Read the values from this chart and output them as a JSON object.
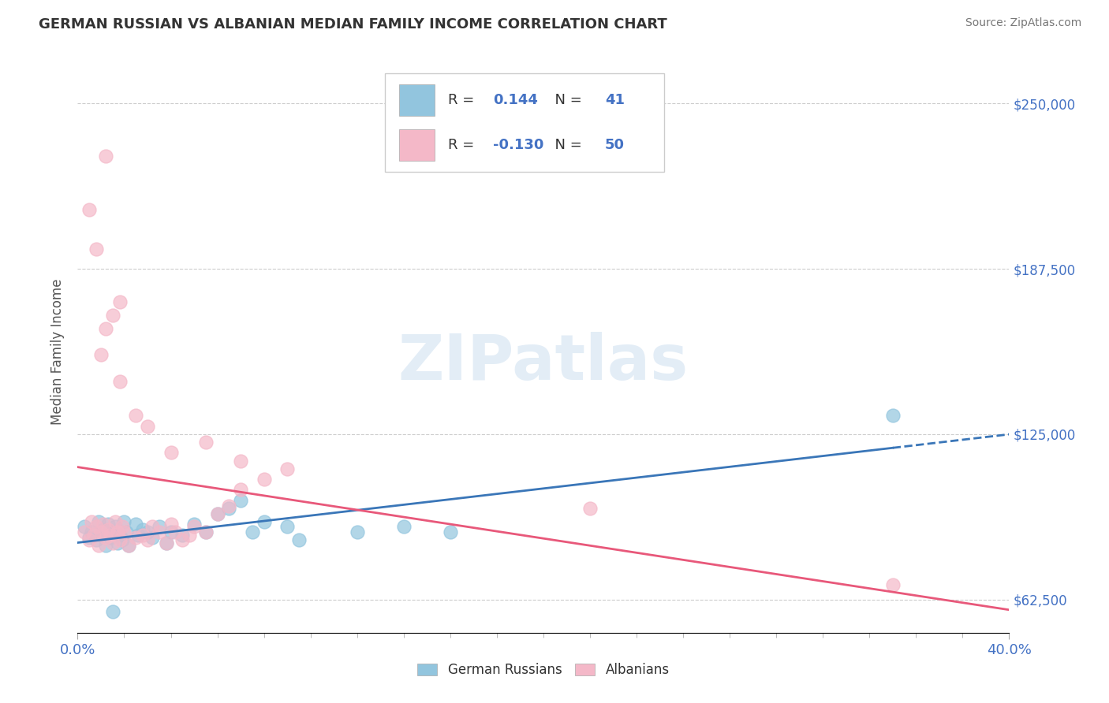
{
  "title": "GERMAN RUSSIAN VS ALBANIAN MEDIAN FAMILY INCOME CORRELATION CHART",
  "source": "Source: ZipAtlas.com",
  "ylabel": "Median Family Income",
  "xlim": [
    0.0,
    0.4
  ],
  "ylim": [
    50000,
    262500
  ],
  "yticks": [
    62500,
    125000,
    187500,
    250000
  ],
  "ytick_labels": [
    "$62,500",
    "$125,000",
    "$187,500",
    "$250,000"
  ],
  "x_left_label": "0.0%",
  "x_right_label": "40.0%",
  "watermark": "ZIPatlas",
  "legend_labels": [
    "German Russians",
    "Albanians"
  ],
  "blue_color": "#92c5de",
  "pink_color": "#f4b8c8",
  "blue_line_color": "#3a76b8",
  "pink_line_color": "#e8587a",
  "blue_r": "0.144",
  "blue_n": "41",
  "pink_r": "-0.130",
  "pink_n": "50",
  "blue_scatter_x": [
    0.003,
    0.005,
    0.006,
    0.008,
    0.009,
    0.01,
    0.011,
    0.012,
    0.013,
    0.014,
    0.015,
    0.016,
    0.017,
    0.018,
    0.019,
    0.02,
    0.021,
    0.022,
    0.025,
    0.026,
    0.028,
    0.03,
    0.032,
    0.035,
    0.038,
    0.04,
    0.045,
    0.05,
    0.055,
    0.06,
    0.065,
    0.07,
    0.075,
    0.08,
    0.09,
    0.095,
    0.12,
    0.14,
    0.16,
    0.35,
    0.015
  ],
  "blue_scatter_y": [
    90000,
    86000,
    88000,
    85000,
    92000,
    87000,
    89000,
    83000,
    91000,
    86000,
    88000,
    90000,
    84000,
    87000,
    85000,
    92000,
    88000,
    83000,
    91000,
    87000,
    89000,
    88000,
    86000,
    90000,
    84000,
    88000,
    87000,
    91000,
    88000,
    95000,
    97000,
    100000,
    88000,
    92000,
    90000,
    85000,
    88000,
    90000,
    88000,
    132000,
    58000
  ],
  "pink_scatter_x": [
    0.003,
    0.005,
    0.006,
    0.007,
    0.008,
    0.009,
    0.01,
    0.011,
    0.012,
    0.013,
    0.014,
    0.015,
    0.016,
    0.017,
    0.018,
    0.019,
    0.02,
    0.022,
    0.025,
    0.028,
    0.03,
    0.032,
    0.035,
    0.038,
    0.04,
    0.042,
    0.045,
    0.048,
    0.05,
    0.055,
    0.06,
    0.065,
    0.07,
    0.08,
    0.09,
    0.025,
    0.03,
    0.04,
    0.055,
    0.07,
    0.01,
    0.012,
    0.015,
    0.018,
    0.22,
    0.35,
    0.005,
    0.008,
    0.012,
    0.018
  ],
  "pink_scatter_y": [
    88000,
    85000,
    92000,
    87000,
    90000,
    83000,
    88000,
    91000,
    86000,
    89000,
    87000,
    84000,
    92000,
    88000,
    85000,
    90000,
    88000,
    83000,
    86000,
    87000,
    85000,
    90000,
    88000,
    84000,
    91000,
    88000,
    85000,
    87000,
    90000,
    88000,
    95000,
    98000,
    104000,
    108000,
    112000,
    132000,
    128000,
    118000,
    122000,
    115000,
    155000,
    165000,
    170000,
    145000,
    97000,
    68000,
    210000,
    195000,
    230000,
    175000
  ]
}
